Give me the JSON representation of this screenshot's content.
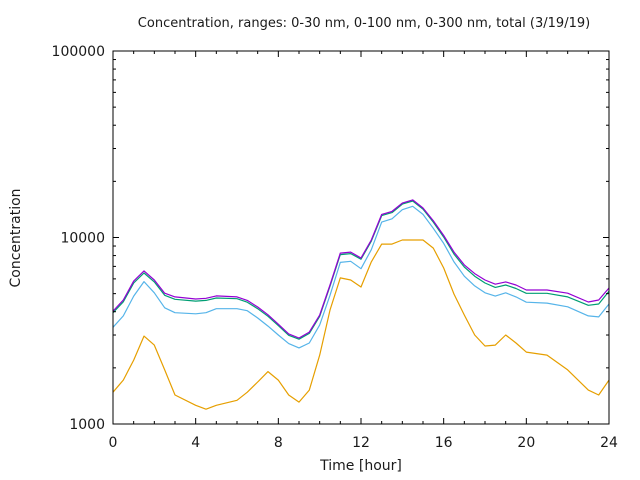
{
  "chart_data": {
    "type": "line",
    "title": "Concentration, ranges: 0-30 nm, 0-100 nm, 0-300 nm, total (3/19/19)",
    "xlabel": "Time [hour]",
    "ylabel": "Concentration",
    "xlim": [
      0,
      24
    ],
    "ylim": [
      1000,
      100000
    ],
    "yscale": "log",
    "grid": false,
    "legend": "none",
    "x_ticks": [
      "0",
      "4",
      "8",
      "12",
      "16",
      "20",
      "24"
    ],
    "x_tick_values": [
      0,
      4,
      8,
      12,
      16,
      20,
      24
    ],
    "y_ticks": [
      "1000",
      "10000",
      "100000"
    ],
    "y_tick_values": [
      1000,
      10000,
      100000
    ],
    "x": [
      0,
      0.5,
      1,
      1.5,
      2,
      2.5,
      3,
      4,
      4.5,
      5,
      6,
      6.5,
      7,
      7.5,
      8,
      8.5,
      9,
      9.5,
      10,
      10.5,
      11,
      11.5,
      12,
      12.5,
      13,
      13.5,
      14,
      14.5,
      15,
      15.5,
      16,
      16.5,
      17,
      17.5,
      18,
      18.5,
      19,
      19.5,
      20,
      21,
      22,
      23,
      23.5,
      24
    ],
    "series": [
      {
        "name": "total",
        "color": "#9400d3",
        "values": [
          4030,
          4620,
          5840,
          6620,
          5920,
          5030,
          4800,
          4680,
          4720,
          4860,
          4800,
          4600,
          4240,
          3850,
          3430,
          3040,
          2890,
          3110,
          3840,
          5560,
          8250,
          8350,
          7760,
          9700,
          13300,
          13800,
          15300,
          15900,
          14400,
          12300,
          10250,
          8350,
          7130,
          6400,
          5920,
          5620,
          5780,
          5560,
          5230,
          5230,
          5030,
          4510,
          4620,
          5360
        ]
      },
      {
        "name": "0-300 nm",
        "color": "#009e73",
        "values": [
          3950,
          4520,
          5700,
          6450,
          5780,
          4900,
          4660,
          4560,
          4600,
          4740,
          4700,
          4500,
          4150,
          3780,
          3370,
          2990,
          2850,
          3060,
          3780,
          5480,
          8100,
          8200,
          7650,
          9550,
          13100,
          13600,
          15100,
          15700,
          14200,
          12100,
          10050,
          8150,
          6950,
          6200,
          5700,
          5400,
          5560,
          5330,
          5020,
          5020,
          4800,
          4330,
          4400,
          5150
        ]
      },
      {
        "name": "0-100 nm",
        "color": "#56b4e9",
        "values": [
          3300,
          3800,
          4850,
          5800,
          5050,
          4200,
          3950,
          3900,
          3950,
          4150,
          4150,
          4050,
          3700,
          3350,
          3000,
          2700,
          2560,
          2720,
          3400,
          4900,
          7350,
          7450,
          6800,
          8600,
          12100,
          12600,
          14100,
          14700,
          13300,
          11200,
          9300,
          7400,
          6200,
          5500,
          5050,
          4850,
          5050,
          4800,
          4500,
          4450,
          4250,
          3800,
          3750,
          4400
        ]
      },
      {
        "name": "0-30 nm",
        "color": "#e69f00",
        "values": [
          1480,
          1720,
          2200,
          2960,
          2650,
          1950,
          1430,
          1260,
          1200,
          1260,
          1340,
          1480,
          1680,
          1910,
          1720,
          1430,
          1310,
          1520,
          2340,
          4080,
          6070,
          5920,
          5430,
          7400,
          9220,
          9220,
          9700,
          9700,
          9700,
          8770,
          6860,
          4970,
          3840,
          3000,
          2620,
          2650,
          3000,
          2720,
          2430,
          2340,
          1950,
          1520,
          1430,
          1720
        ]
      }
    ]
  }
}
